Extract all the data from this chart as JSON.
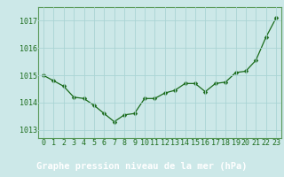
{
  "x": [
    0,
    1,
    2,
    3,
    4,
    5,
    6,
    7,
    8,
    9,
    10,
    11,
    12,
    13,
    14,
    15,
    16,
    17,
    18,
    19,
    20,
    21,
    22,
    23
  ],
  "y": [
    1015.0,
    1014.8,
    1014.6,
    1014.2,
    1014.15,
    1013.9,
    1013.6,
    1013.3,
    1013.55,
    1013.6,
    1014.15,
    1014.15,
    1014.35,
    1014.45,
    1014.7,
    1014.7,
    1014.4,
    1014.7,
    1014.75,
    1015.1,
    1015.15,
    1015.55,
    1016.4,
    1017.1
  ],
  "line_color": "#1a6b1a",
  "marker": "D",
  "marker_size": 2.5,
  "bg_color": "#cce8e8",
  "plot_bg_color": "#cce8e8",
  "grid_color": "#aad4d4",
  "title": "Graphe pression niveau de la mer (hPa)",
  "title_fontsize": 7.5,
  "ylabel_ticks": [
    1013,
    1014,
    1015,
    1016,
    1017
  ],
  "ylim": [
    1012.7,
    1017.5
  ],
  "xlim": [
    -0.5,
    23.5
  ],
  "tick_fontsize": 6.0,
  "axis_label_color": "#1a6b1a",
  "spine_color": "#5a9a5a",
  "footer_bg": "#1a6b1a",
  "footer_text_color": "#ffffff"
}
